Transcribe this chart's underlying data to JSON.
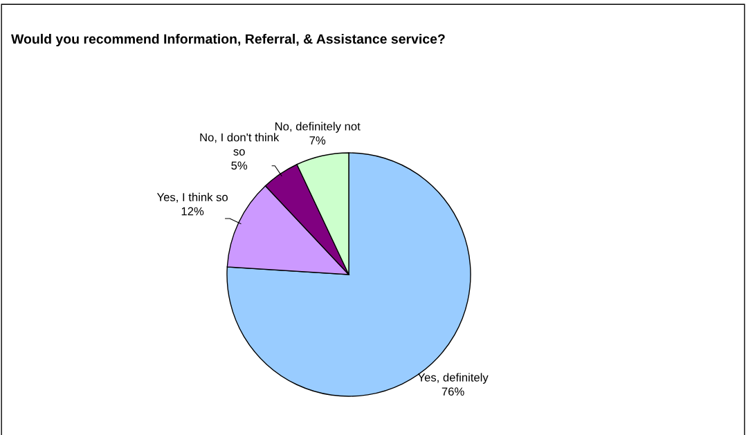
{
  "chart_data": {
    "type": "pie",
    "title": "Would you recommend Information, Referral, & Assistance service?",
    "categories": [
      "Yes, definitely",
      "Yes, I think so",
      "No, I don't think\nso",
      "No, definitely not"
    ],
    "values": [
      76,
      12,
      5,
      7
    ],
    "colors": [
      "#99ccff",
      "#cc99ff",
      "#800080",
      "#ccffcc"
    ],
    "value_labels": [
      "76%",
      "12%",
      "5%",
      "7%"
    ]
  }
}
